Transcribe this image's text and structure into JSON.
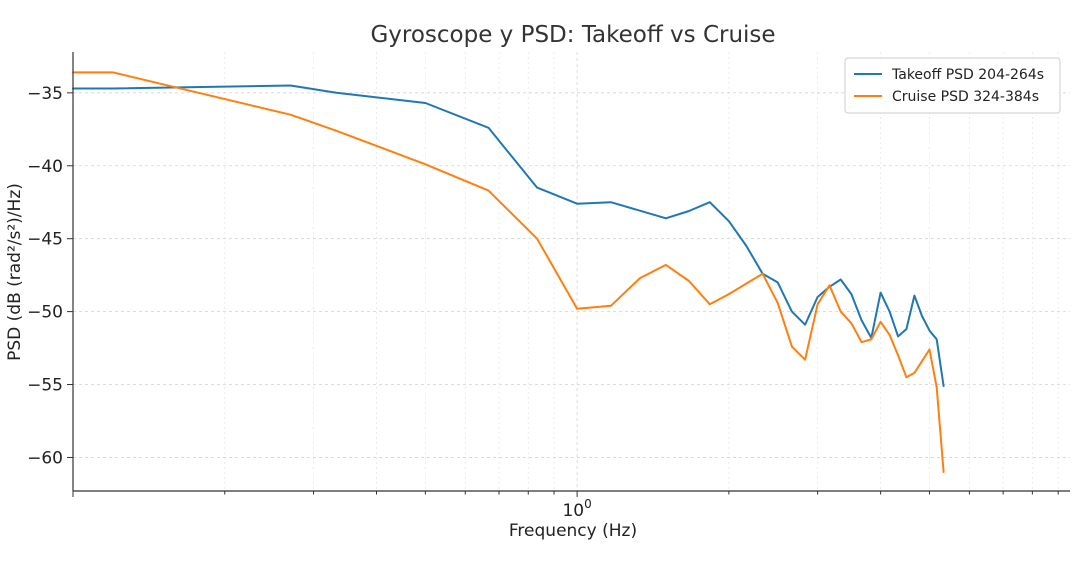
{
  "chart_data": {
    "type": "line",
    "title": "Gyroscope y PSD: Takeoff vs Cruise",
    "xlabel": "Frequency (Hz)",
    "ylabel": "PSD (dB (rad²/s²)/Hz)",
    "x_scale": "log",
    "xlim": [
      0.1,
      9.5
    ],
    "ylim": [
      -62.3,
      -32.2
    ],
    "xticks": [
      {
        "value": 1,
        "label": "10^0"
      }
    ],
    "yticks": [
      -35,
      -40,
      -45,
      -50,
      -55,
      -60
    ],
    "ytick_labels": [
      "−35",
      "−40",
      "−45",
      "−50",
      "−55",
      "−60"
    ],
    "grid": true,
    "legend_position": "top-right",
    "series": [
      {
        "name": "Takeoff PSD 204-264s",
        "color": "#1f77b4",
        "points": [
          [
            0.1,
            -34.7
          ],
          [
            0.12,
            -34.7
          ],
          [
            0.27,
            -34.5
          ],
          [
            0.333,
            -35.0
          ],
          [
            0.5,
            -35.7
          ],
          [
            0.667,
            -37.4
          ],
          [
            0.833,
            -41.5
          ],
          [
            1.0,
            -42.6
          ],
          [
            1.167,
            -42.5
          ],
          [
            1.5,
            -43.6
          ],
          [
            1.667,
            -43.1
          ],
          [
            1.833,
            -42.5
          ],
          [
            2.0,
            -43.8
          ],
          [
            2.167,
            -45.5
          ],
          [
            2.333,
            -47.4
          ],
          [
            2.5,
            -48.0
          ],
          [
            2.667,
            -50.0
          ],
          [
            2.833,
            -50.9
          ],
          [
            3.0,
            -49.0
          ],
          [
            3.167,
            -48.3
          ],
          [
            3.333,
            -47.8
          ],
          [
            3.5,
            -48.8
          ],
          [
            3.667,
            -50.6
          ],
          [
            3.833,
            -51.8
          ],
          [
            4.0,
            -48.7
          ],
          [
            4.167,
            -50.0
          ],
          [
            4.333,
            -51.7
          ],
          [
            4.5,
            -51.2
          ],
          [
            4.667,
            -48.9
          ],
          [
            4.833,
            -50.3
          ],
          [
            5.0,
            -51.3
          ],
          [
            5.167,
            -51.9
          ],
          [
            5.333,
            -55.1
          ]
        ]
      },
      {
        "name": "Cruise PSD 324-384s",
        "color": "#ff7f0e",
        "points": [
          [
            0.1,
            -33.6
          ],
          [
            0.12,
            -33.6
          ],
          [
            0.27,
            -36.5
          ],
          [
            0.333,
            -37.6
          ],
          [
            0.5,
            -39.9
          ],
          [
            0.667,
            -41.7
          ],
          [
            0.833,
            -45.0
          ],
          [
            1.0,
            -49.8
          ],
          [
            1.167,
            -49.6
          ],
          [
            1.333,
            -47.7
          ],
          [
            1.5,
            -46.8
          ],
          [
            1.667,
            -47.9
          ],
          [
            1.833,
            -49.5
          ],
          [
            2.0,
            -48.8
          ],
          [
            2.333,
            -47.4
          ],
          [
            2.5,
            -49.4
          ],
          [
            2.667,
            -52.4
          ],
          [
            2.833,
            -53.3
          ],
          [
            3.0,
            -49.5
          ],
          [
            3.167,
            -48.2
          ],
          [
            3.333,
            -50.0
          ],
          [
            3.5,
            -50.8
          ],
          [
            3.667,
            -52.1
          ],
          [
            3.833,
            -51.9
          ],
          [
            4.0,
            -50.7
          ],
          [
            4.167,
            -51.6
          ],
          [
            4.333,
            -53.0
          ],
          [
            4.5,
            -54.5
          ],
          [
            4.667,
            -54.2
          ],
          [
            5.0,
            -52.6
          ],
          [
            5.167,
            -55.2
          ],
          [
            5.333,
            -61.0
          ]
        ]
      }
    ]
  }
}
